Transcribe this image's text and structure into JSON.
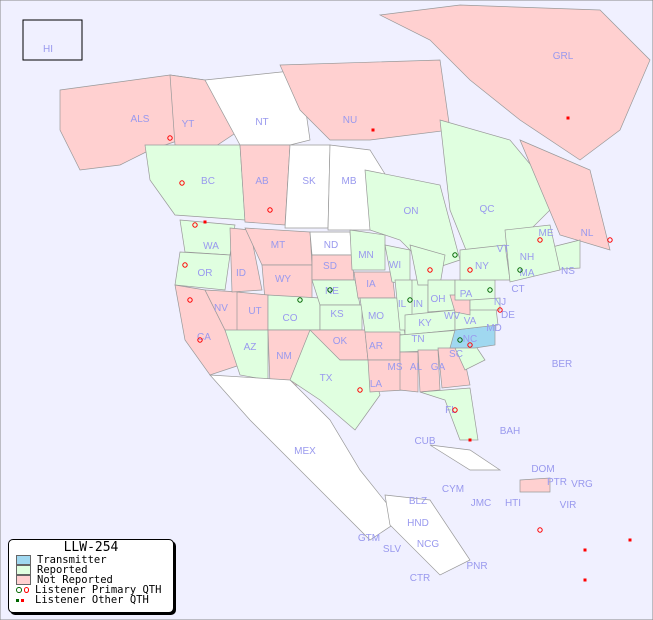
{
  "title": "LLW-254",
  "colors": {
    "background": "#f0f0ff",
    "reported": "#e0ffe0",
    "not_reported": "#ffd0d0",
    "transmitter": "#a0d8f0",
    "unreported_outside": "#ffffff",
    "primary_qth_red": "#ff0000",
    "primary_qth_green": "#006600",
    "label": "#9999ee"
  },
  "legend": {
    "title": "LLW-254",
    "items": [
      {
        "label": "Transmitter",
        "icon": "swatch-blue"
      },
      {
        "label": "Reported",
        "icon": "swatch-green"
      },
      {
        "label": "Not Reported",
        "icon": "swatch-pink"
      },
      {
        "label": "Listener Primary QTH",
        "icon": "circle-markers"
      },
      {
        "label": "Listener Other QTH",
        "icon": "square-markers"
      }
    ]
  },
  "regions": {
    "HI": "HI",
    "ALS": "ALS",
    "YT": "YT",
    "NT": "NT",
    "NU": "NU",
    "GRL": "GRL",
    "BC": "BC",
    "AB": "AB",
    "SK": "SK",
    "MB": "MB",
    "ON": "ON",
    "QC": "QC",
    "NL": "NL",
    "NS": "NS",
    "WA": "WA",
    "OR": "OR",
    "CA": "CA",
    "NV": "NV",
    "ID": "ID",
    "MT": "MT",
    "WY": "WY",
    "UT": "UT",
    "AZ": "AZ",
    "CO": "CO",
    "NM": "NM",
    "ND": "ND",
    "SD": "SD",
    "NE": "NE",
    "KS": "KS",
    "OK": "OK",
    "TX": "TX",
    "MN": "MN",
    "IA": "IA",
    "MO": "MO",
    "AR": "AR",
    "LA": "LA",
    "WI": "WI",
    "IL": "IL",
    "IN": "IN",
    "OH": "OH",
    "KY": "KY",
    "TN": "TN",
    "MS": "MS",
    "AL": "AL",
    "GA": "GA",
    "FL": "FL",
    "SC": "SC",
    "NC": "NC",
    "VA": "VA",
    "WV": "WV",
    "PA": "PA",
    "NY": "NY",
    "MD": "MD",
    "DE": "DE",
    "NJ": "NJ",
    "CT": "CT",
    "MA": "MA",
    "VT": "VT",
    "NH": "NH",
    "ME": "ME",
    "BER": "BER",
    "BAH": "BAH",
    "CUB": "CUB",
    "MEX": "MEX",
    "DOM": "DOM",
    "PTR": "PTR",
    "VRG": "VRG",
    "VIR": "VIR",
    "CYM": "CYM",
    "JMC": "JMC",
    "HTI": "HTI",
    "BLZ": "BLZ",
    "GTM": "GTM",
    "HND": "HND",
    "SLV": "SLV",
    "NCG": "NCG",
    "CTR": "CTR",
    "PNR": "PNR"
  }
}
